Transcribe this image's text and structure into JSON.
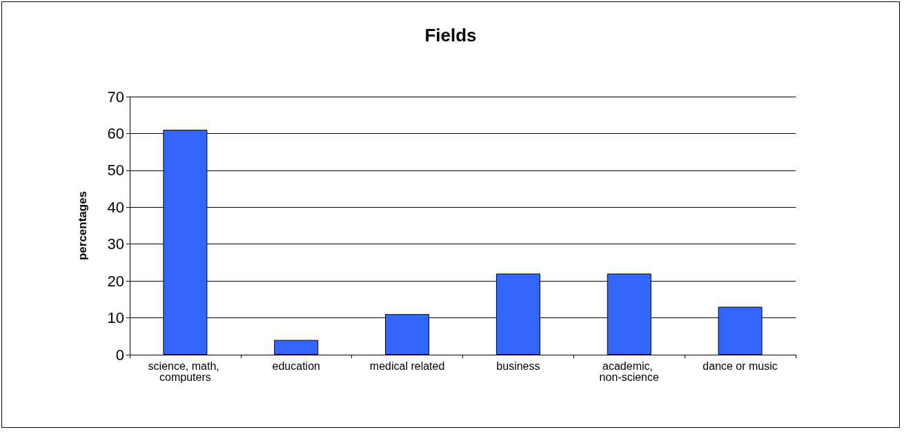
{
  "chart_data": {
    "type": "bar",
    "title": "Fields",
    "ylabel": "percentages",
    "categories": [
      "science, math, computers",
      "education",
      "medical related",
      "business",
      "academic, non-science",
      "dance or music"
    ],
    "values": [
      61,
      4,
      11,
      22,
      22,
      13
    ],
    "color": "#3366ff",
    "ylim": [
      0,
      70
    ],
    "yticks": [
      0,
      10,
      20,
      30,
      40,
      50,
      60,
      70
    ],
    "grid": "y"
  }
}
